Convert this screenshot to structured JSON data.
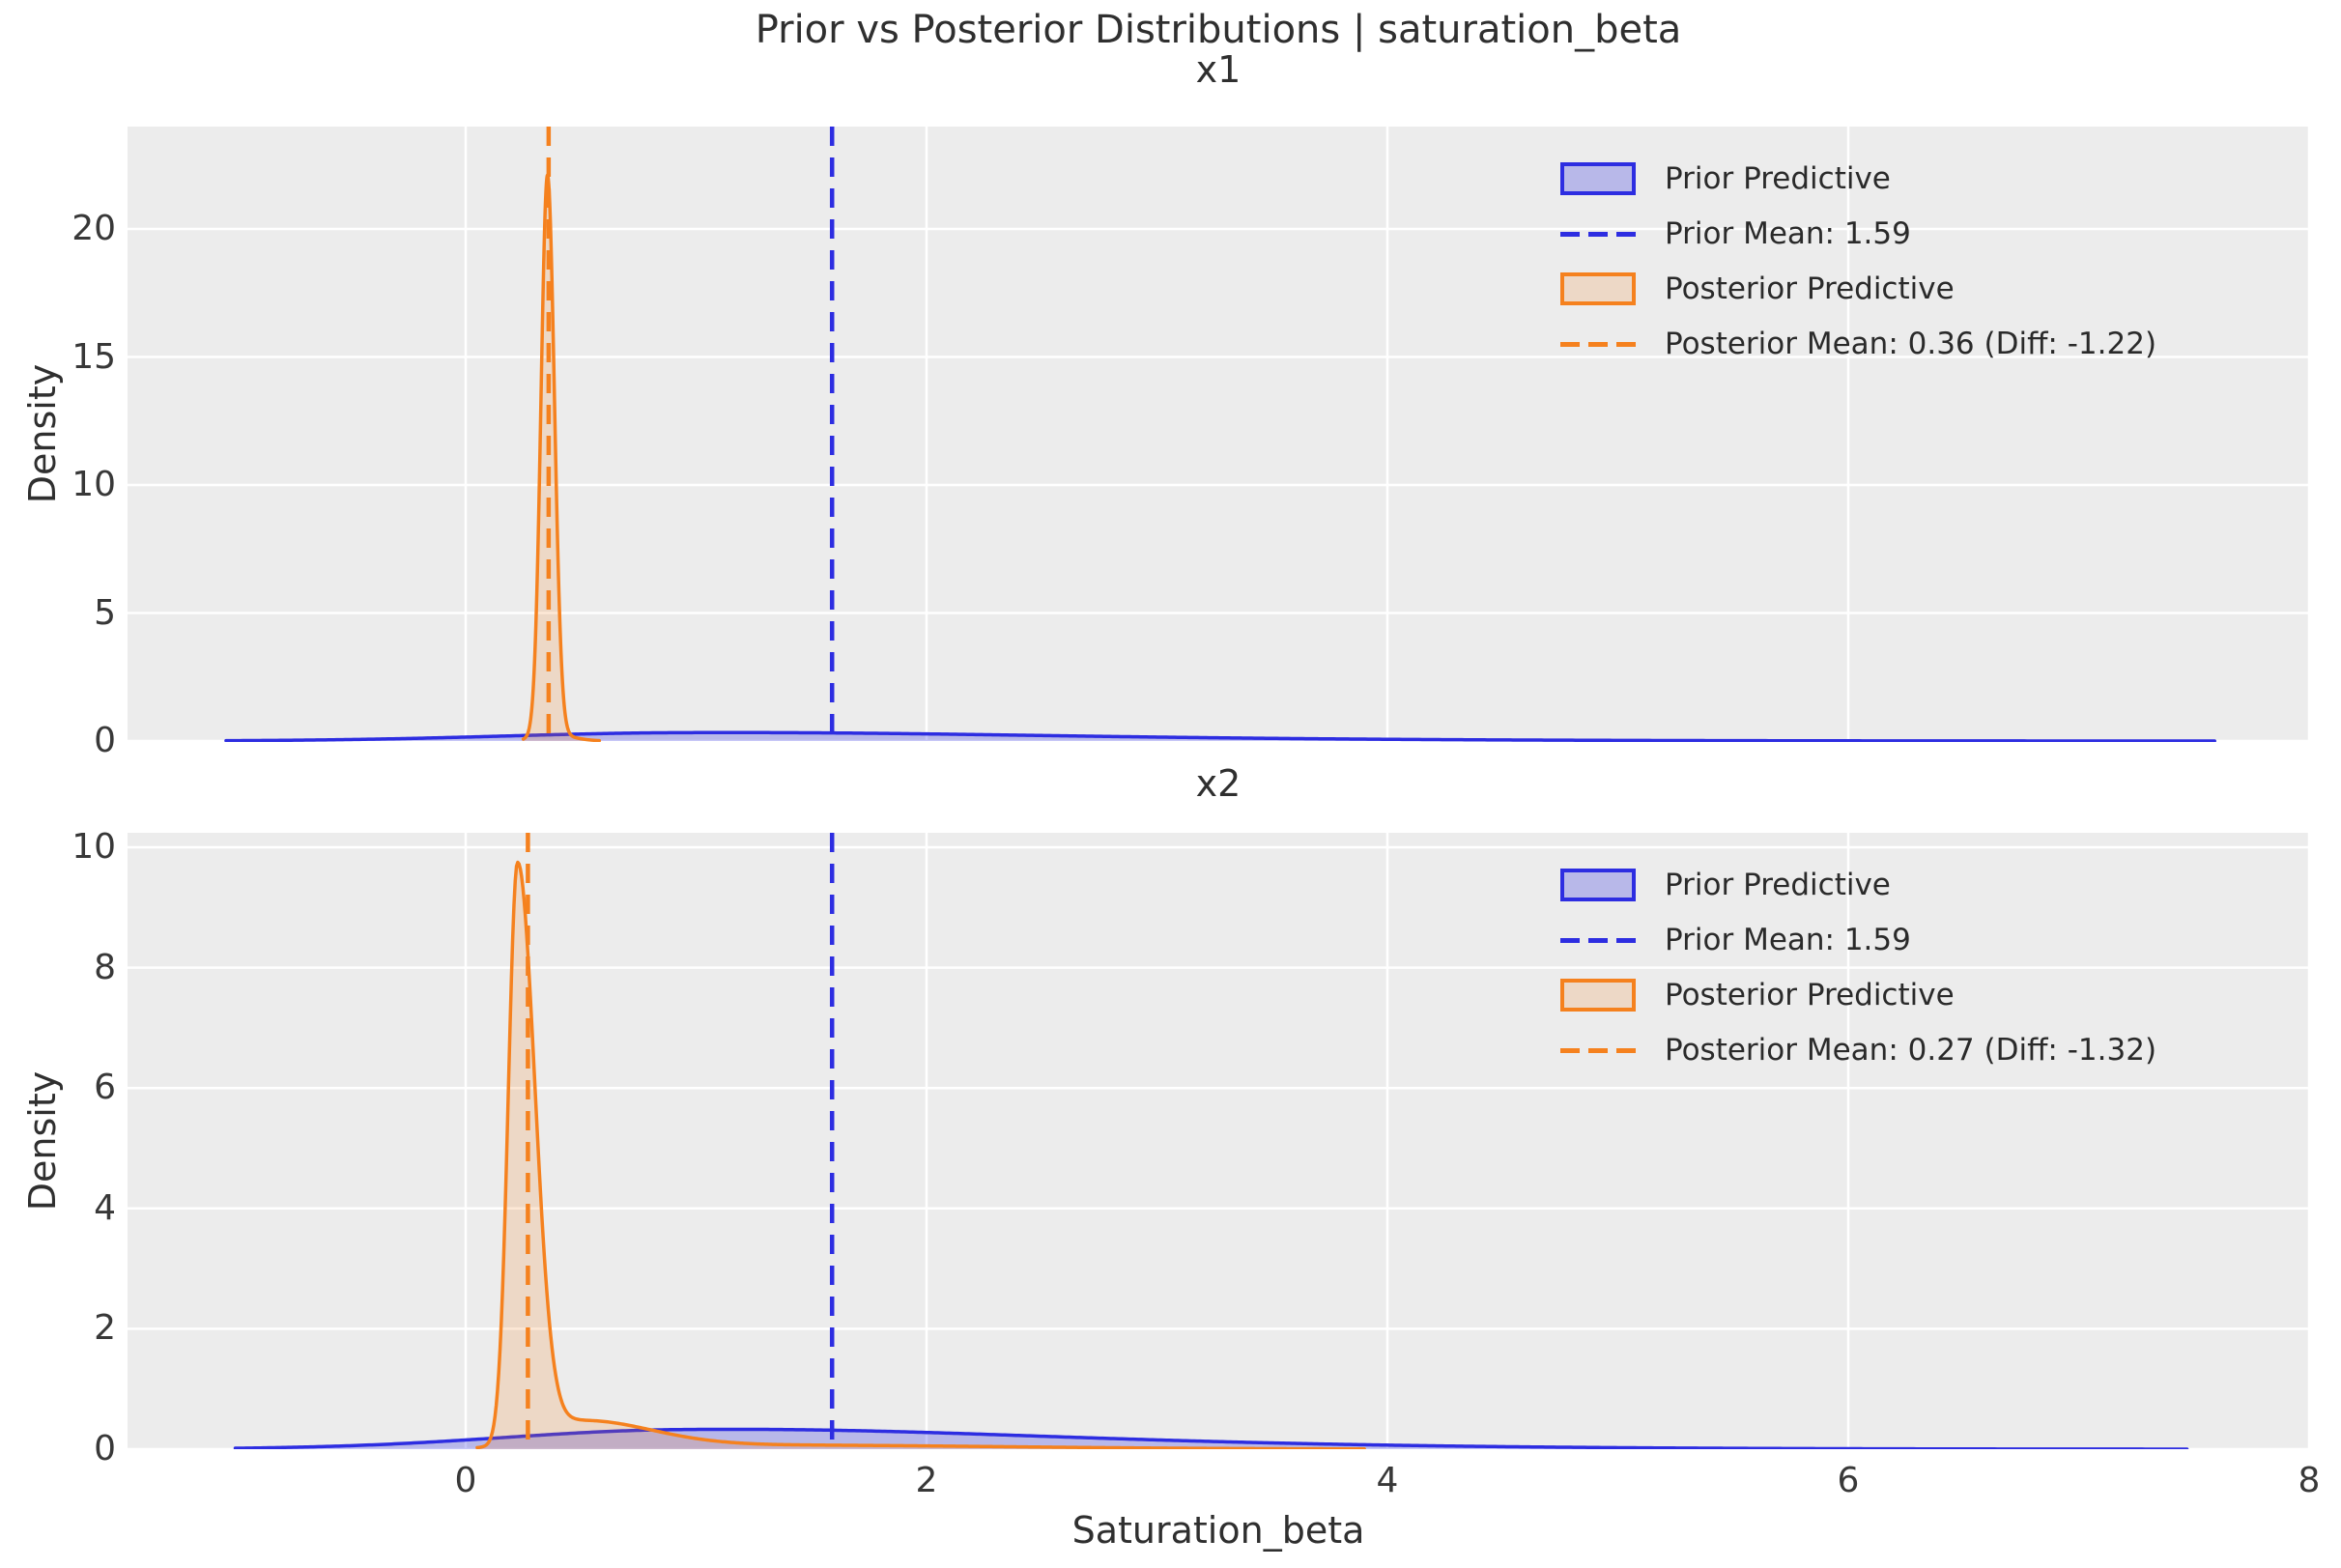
{
  "colors": {
    "prior": "#2d2de1",
    "prior_fill": "rgba(45,45,225,0.27)",
    "posterior": "#f5811e",
    "posterior_fill": "rgba(245,129,30,0.18)",
    "panel_bg": "#ececec",
    "grid": "#ffffff",
    "text": "#333333"
  },
  "chart_data": {
    "type": "area",
    "title": "Prior vs Posterior Distributions | saturation_beta",
    "xlabel": "Saturation_beta",
    "xlim": [
      -1.47,
      8.0
    ],
    "x_ticks": [
      0,
      2,
      4,
      6,
      8
    ],
    "grid": true,
    "legend_position": "upper right",
    "legend_frame": false,
    "subplots": [
      {
        "title": "x1",
        "ylabel": "Density",
        "ylim": [
          0,
          24
        ],
        "yticks": [
          0,
          5,
          10,
          15,
          20
        ],
        "prior_mean": 1.59,
        "posterior_mean": 0.36,
        "diff": -1.22,
        "series": [
          {
            "name": "Prior Predictive",
            "role": "prior",
            "span": [
              -1.04,
              7.59
            ],
            "peak_x": 0.9,
            "peak_density": 0.33,
            "kde_components": [
              {
                "w": 0.27,
                "mu": 0.9,
                "sl": 0.75,
                "sr": 1.3
              },
              {
                "w": 0.09,
                "mu": 2.2,
                "sl": 1.3,
                "sr": 1.7
              }
            ]
          },
          {
            "name": "Posterior Predictive",
            "role": "posterior",
            "span": [
              0.25,
              0.58
            ],
            "peak_x": 0.36,
            "peak_density": 22.1,
            "kde_components": [
              {
                "w": 21.8,
                "mu": 0.355,
                "sl": 0.028,
                "sr": 0.03
              },
              {
                "w": 0.3,
                "mu": 0.36,
                "sl": 0.06,
                "sr": 0.09
              }
            ]
          }
        ],
        "vlines": [
          {
            "x": 1.59,
            "role": "prior",
            "label": "Prior Mean: 1.59"
          },
          {
            "x": 0.36,
            "role": "posterior",
            "label": "Posterior Mean: 0.36 (Diff: -1.22)"
          }
        ],
        "legend": [
          {
            "swatch": "patch",
            "series": "prior",
            "label": "Prior Predictive"
          },
          {
            "swatch": "dash",
            "series": "prior",
            "label": "Prior Mean: 1.59"
          },
          {
            "swatch": "patch",
            "series": "posterior",
            "label": "Posterior Predictive"
          },
          {
            "swatch": "dash",
            "series": "posterior",
            "label": "Posterior Mean: 0.36 (Diff: -1.22)"
          }
        ]
      },
      {
        "title": "x2",
        "ylabel": "Density",
        "ylim": [
          0,
          10.25
        ],
        "yticks": [
          0,
          2,
          4,
          6,
          8,
          10
        ],
        "prior_mean": 1.59,
        "posterior_mean": 0.27,
        "diff": -1.32,
        "series": [
          {
            "name": "Prior Predictive",
            "role": "prior",
            "span": [
              -1.0,
              7.47
            ],
            "peak_x": 0.9,
            "peak_density": 0.33,
            "kde_components": [
              {
                "w": 0.27,
                "mu": 0.9,
                "sl": 0.75,
                "sr": 1.3
              },
              {
                "w": 0.09,
                "mu": 2.2,
                "sl": 1.3,
                "sr": 1.7
              }
            ]
          },
          {
            "name": "Posterior Predictive",
            "role": "posterior",
            "span": [
              0.05,
              3.9
            ],
            "peak_x": 0.225,
            "peak_density": 9.75,
            "kde_components": [
              {
                "w": 9.6,
                "mu": 0.225,
                "sl": 0.04,
                "sr": 0.075
              },
              {
                "w": 0.45,
                "mu": 0.5,
                "sl": 0.18,
                "sr": 0.3
              },
              {
                "w": 0.07,
                "mu": 1.2,
                "sl": 0.5,
                "sr": 1.1
              }
            ]
          }
        ],
        "vlines": [
          {
            "x": 1.59,
            "role": "prior",
            "label": "Prior Mean: 1.59"
          },
          {
            "x": 0.27,
            "role": "posterior",
            "label": "Posterior Mean: 0.27 (Diff: -1.32)"
          }
        ],
        "legend": [
          {
            "swatch": "patch",
            "series": "prior",
            "label": "Prior Predictive"
          },
          {
            "swatch": "dash",
            "series": "prior",
            "label": "Prior Mean: 1.59"
          },
          {
            "swatch": "patch",
            "series": "posterior",
            "label": "Posterior Predictive"
          },
          {
            "swatch": "dash",
            "series": "posterior",
            "label": "Posterior Mean: 0.27 (Diff: -1.32)"
          }
        ]
      }
    ]
  }
}
